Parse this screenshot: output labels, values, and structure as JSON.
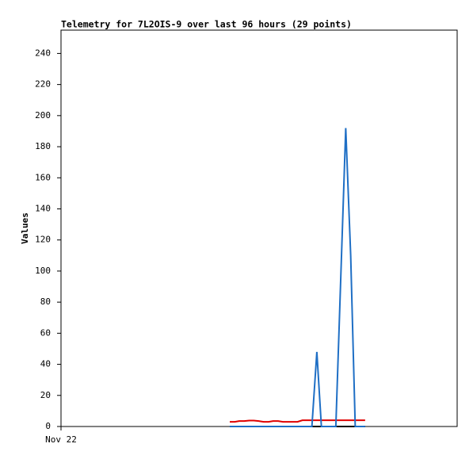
{
  "chart_data": {
    "type": "line",
    "title": "Telemetry for 7L2OIS-9 over last 96 hours (29 points)",
    "y_label": "Values",
    "x": [
      40.9,
      42.1,
      43.2,
      44.4,
      45.6,
      46.7,
      47.9,
      49.1,
      50.3,
      51.4,
      52.6,
      53.8,
      54.9,
      56.1,
      57.3,
      58.5,
      59.6,
      60.8,
      62.0,
      63.1,
      64.3,
      65.5,
      66.6,
      67.8,
      69.0,
      70.2,
      71.3,
      72.5,
      73.7
    ],
    "xlim": [
      0,
      96
    ],
    "xticks": [
      {
        "value": 0,
        "label": "Nov 22"
      }
    ],
    "ylim": [
      0,
      255
    ],
    "yticks": [
      0,
      20,
      40,
      60,
      80,
      100,
      120,
      140,
      160,
      180,
      200,
      220,
      240
    ],
    "grid": false,
    "series": [
      {
        "color": "#000000",
        "values": [
          0,
          0,
          0,
          0,
          0,
          0,
          0,
          0,
          0,
          0,
          0,
          0,
          0,
          0,
          0,
          0,
          0,
          0,
          0,
          0,
          0,
          0,
          0,
          0,
          0,
          0,
          0,
          0,
          0
        ]
      },
      {
        "color": "#e00000",
        "values": [
          3,
          3,
          3.5,
          3.5,
          3.8,
          3.8,
          3.5,
          3,
          3,
          3.5,
          3.5,
          3,
          3,
          3,
          3,
          4,
          4,
          4,
          4,
          4,
          4,
          4,
          4,
          4,
          4,
          4,
          4,
          4,
          4
        ]
      },
      {
        "color": "#1f6fc5",
        "values": [
          0,
          0,
          0,
          0,
          0,
          0,
          0,
          0,
          0,
          0,
          0,
          0,
          0,
          0,
          0,
          0,
          0,
          0,
          48,
          0,
          0,
          0,
          0,
          96,
          192,
          110,
          0,
          0,
          0
        ]
      }
    ]
  }
}
